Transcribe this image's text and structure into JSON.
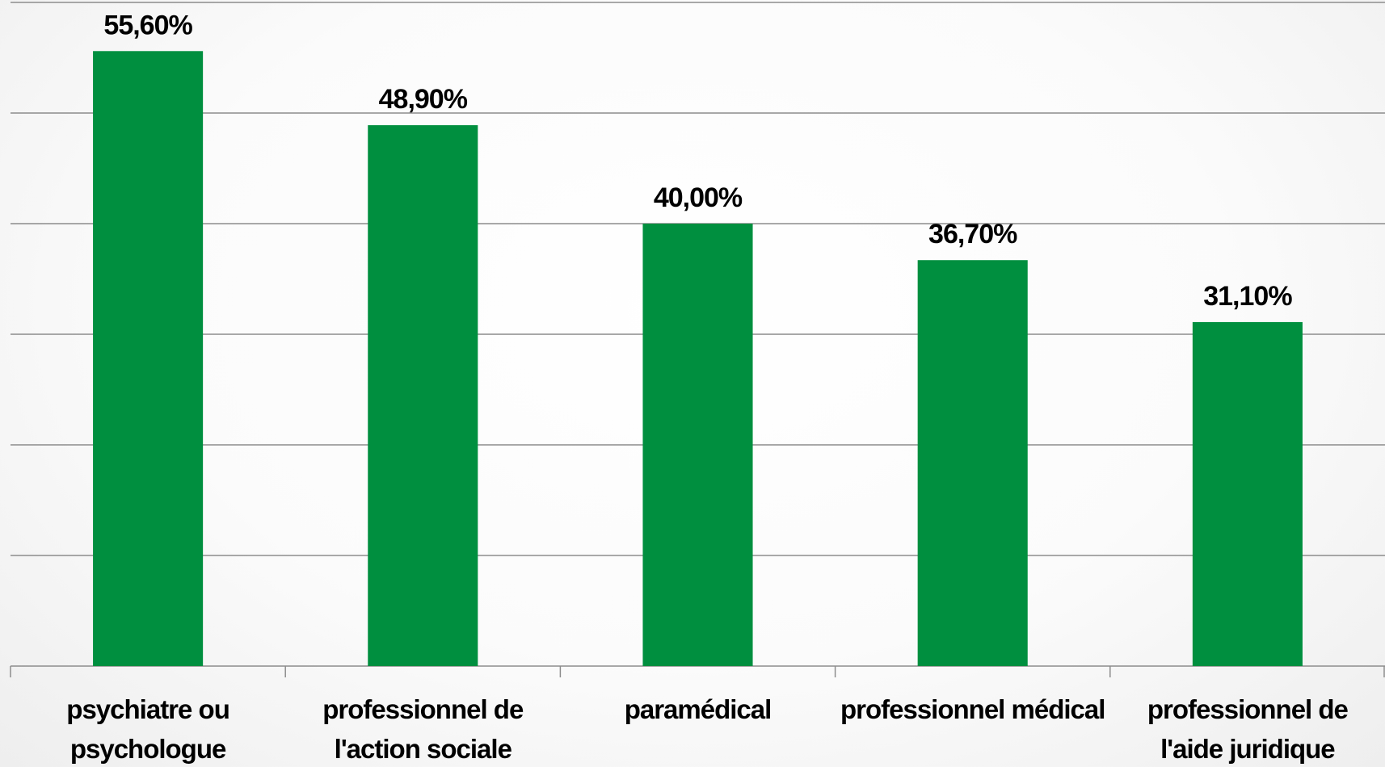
{
  "chart_data": {
    "type": "bar",
    "categories": [
      "psychiatre ou psychologue",
      "professionnel de l'action sociale",
      "paramédical",
      "professionnel médical",
      "professionnel de l'aide juridique"
    ],
    "values": [
      55.6,
      48.9,
      40.0,
      36.7,
      31.1
    ],
    "value_labels": [
      "55,60%",
      "48,90%",
      "40,00%",
      "36,70%",
      "31,10%"
    ],
    "color": "#008f3f",
    "ylim": [
      0,
      60
    ],
    "yticks": [
      0,
      10,
      20,
      30,
      40,
      50,
      60
    ],
    "grid": true
  }
}
